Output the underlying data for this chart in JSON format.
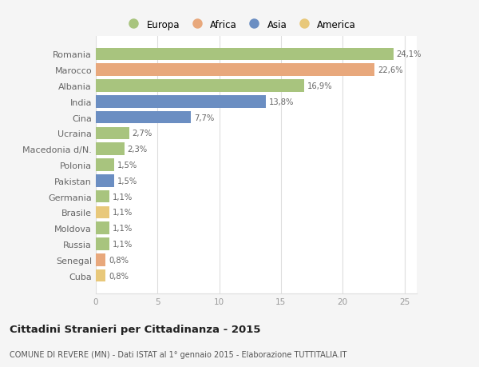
{
  "categories": [
    "Romania",
    "Marocco",
    "Albania",
    "India",
    "Cina",
    "Ucraina",
    "Macedonia d/N.",
    "Polonia",
    "Pakistan",
    "Germania",
    "Brasile",
    "Moldova",
    "Russia",
    "Senegal",
    "Cuba"
  ],
  "values": [
    24.1,
    22.6,
    16.9,
    13.8,
    7.7,
    2.7,
    2.3,
    1.5,
    1.5,
    1.1,
    1.1,
    1.1,
    1.1,
    0.8,
    0.8
  ],
  "labels": [
    "24,1%",
    "22,6%",
    "16,9%",
    "13,8%",
    "7,7%",
    "2,7%",
    "2,3%",
    "1,5%",
    "1,5%",
    "1,1%",
    "1,1%",
    "1,1%",
    "1,1%",
    "0,8%",
    "0,8%"
  ],
  "colors": [
    "#a8c47e",
    "#e8a87c",
    "#a8c47e",
    "#6b8ec2",
    "#6b8ec2",
    "#a8c47e",
    "#a8c47e",
    "#a8c47e",
    "#6b8ec2",
    "#a8c47e",
    "#e8c87a",
    "#a8c47e",
    "#a8c47e",
    "#e8a87c",
    "#e8c87a"
  ],
  "legend_labels": [
    "Europa",
    "Africa",
    "Asia",
    "America"
  ],
  "legend_colors": [
    "#a8c47e",
    "#e8a87c",
    "#6b8ec2",
    "#e8c87a"
  ],
  "title": "Cittadini Stranieri per Cittadinanza - 2015",
  "subtitle": "COMUNE DI REVERE (MN) - Dati ISTAT al 1° gennaio 2015 - Elaborazione TUTTITALIA.IT",
  "xlim": [
    0,
    26
  ],
  "xticks": [
    0,
    5,
    10,
    15,
    20,
    25
  ],
  "bg_color": "#f5f5f5",
  "plot_bg_color": "#ffffff",
  "grid_color": "#dddddd",
  "label_color": "#666666",
  "tick_color": "#999999"
}
